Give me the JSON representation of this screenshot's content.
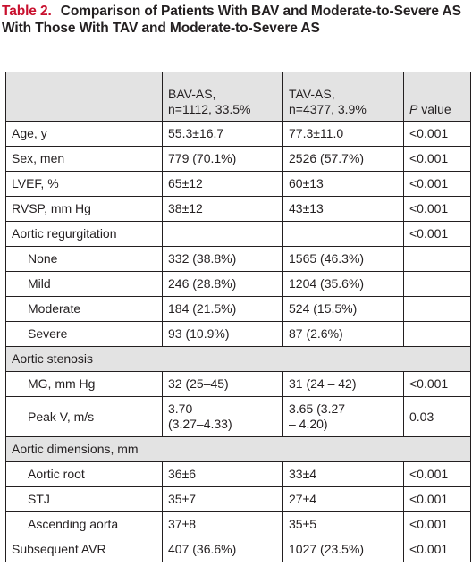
{
  "caption": {
    "number": "Table 2.",
    "title": "Comparison of Patients With BAV and Moderate-to-Severe AS With Those With TAV and Moderate-to-Severe AS"
  },
  "header": {
    "col1": "",
    "col2_line1": "BAV-AS,",
    "col2_line2": "n=1112, 33.5%",
    "col3_line1": "TAV-AS,",
    "col3_line2": "n=4377, 3.9%",
    "col4_italic": "P",
    "col4_rest": " value"
  },
  "rows": [
    {
      "label": "Age, y",
      "bav": "55.3±16.7",
      "tav": "77.3±11.0",
      "p": "<0.001"
    },
    {
      "label": "Sex, men",
      "bav": "779 (70.1%)",
      "tav": "2526 (57.7%)",
      "p": "<0.001"
    },
    {
      "label": "LVEF, %",
      "bav": "65±12",
      "tav": "60±13",
      "p": "<0.001"
    },
    {
      "label": "RVSP, mm Hg",
      "bav": "38±12",
      "tav": "43±13",
      "p": "<0.001"
    },
    {
      "label": "Aortic regurgitation",
      "bav": "",
      "tav": "",
      "p": "<0.001"
    },
    {
      "label": "None",
      "bav": "332 (38.8%)",
      "tav": "1565 (46.3%)",
      "p": ""
    },
    {
      "label": "Mild",
      "bav": "246 (28.8%)",
      "tav": "1204 (35.6%)",
      "p": ""
    },
    {
      "label": "Moderate",
      "bav": "184 (21.5%)",
      "tav": "524 (15.5%)",
      "p": ""
    },
    {
      "label": "Severe",
      "bav": "93 (10.9%)",
      "tav": "87 (2.6%)",
      "p": ""
    },
    {
      "label": "Aortic stenosis"
    },
    {
      "label": "MG, mm Hg",
      "bav": "32 (25–45)",
      "tav": "31 (24 – 42)",
      "p": "<0.001"
    },
    {
      "label": "Peak V, m/s",
      "bav_line1": "3.70",
      "bav_line2": "(3.27–4.33)",
      "tav_line1": "3.65 (3.27",
      "tav_line2": "– 4.20)",
      "p": "0.03"
    },
    {
      "label": "Aortic dimensions, mm"
    },
    {
      "label": "Aortic root",
      "bav": "36±6",
      "tav": "33±4",
      "p": "<0.001"
    },
    {
      "label": "STJ",
      "bav": "35±7",
      "tav": "27±4",
      "p": "<0.001"
    },
    {
      "label": "Ascending aorta",
      "bav": "37±8",
      "tav": "35±5",
      "p": "<0.001"
    },
    {
      "label": "Subsequent AVR",
      "bav": "407 (36.6%)",
      "tav": "1027 (23.5%)",
      "p": "<0.001"
    }
  ]
}
